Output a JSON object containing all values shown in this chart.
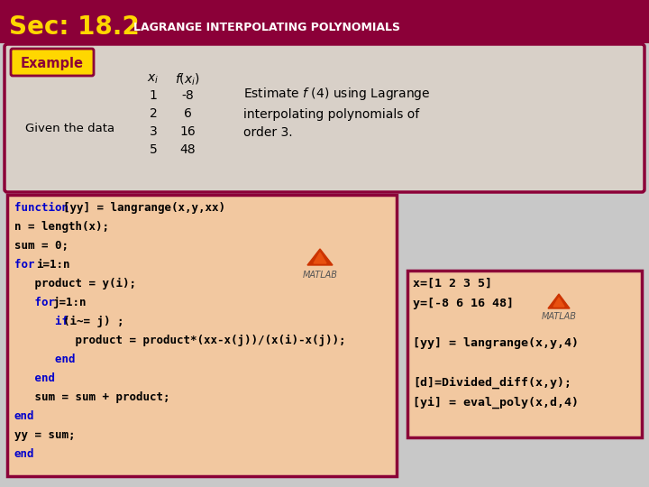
{
  "header_bg": "#8B0038",
  "header_text_sec": "Sec: 18.2",
  "header_text_title": "LAGRANGE INTERPOLATING POLYNOMIALS",
  "header_text_color": "#FFFFFF",
  "header_sec_color": "#FFD700",
  "body_bg": "#C8C8C8",
  "example_box_bg": "#D8D0C8",
  "example_box_border": "#8B0038",
  "example_label_bg": "#FFD700",
  "example_label_text": "Example",
  "example_label_text_color": "#8B0038",
  "given_text": "Given the data",
  "rows_x": [
    "1",
    "2",
    "3",
    "5"
  ],
  "rows_f": [
    "-8",
    "6",
    "16",
    "48"
  ],
  "code_box_bg": "#F2C8A0",
  "code_box_border": "#8B0038",
  "right_box_bg": "#F2C8A0",
  "right_box_border": "#8B0038",
  "code_blue_color": "#0000CC",
  "code_black_color": "#000000",
  "right_box_lines": [
    "x=[1 2 3 5]",
    "y=[-8 6 16 48]",
    "",
    "[yy] = langrange(x,y,4)",
    "",
    "[d]=Divided_diff(x,y);",
    "[yi] = eval_poly(x,d,4)"
  ]
}
